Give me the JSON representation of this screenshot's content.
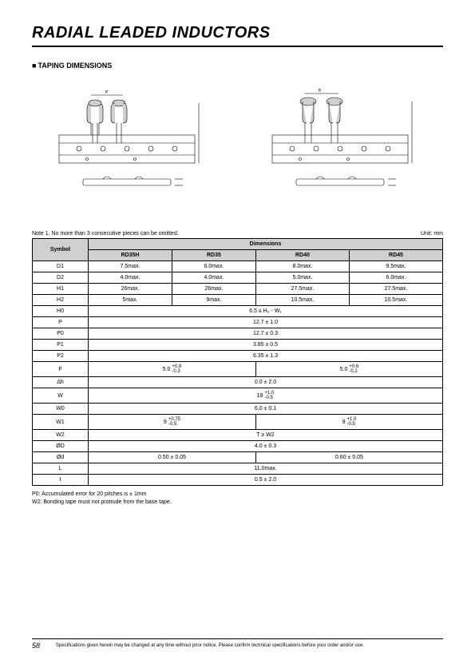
{
  "title": "RADIAL LEADED INDUCTORS",
  "subtitle": "TAPING DIMENSIONS",
  "note1": "Note 1. No more than 3 consecutive pieces can be omitted.",
  "unit": "Unit: mm",
  "table": {
    "header_symbol": "Symbol",
    "header_dimensions": "Dimensions",
    "cols": [
      "RD35H",
      "RD35",
      "RD40",
      "RD45"
    ],
    "rows": [
      {
        "sym": "D1",
        "cells": [
          "7.5max.",
          "6.0max.",
          "8.0max.",
          "9.5max."
        ],
        "spans": [
          1,
          1,
          1,
          1
        ]
      },
      {
        "sym": "D2",
        "cells": [
          "4.0max.",
          "4.0max.",
          "5.0max.",
          "6.0max."
        ],
        "spans": [
          1,
          1,
          1,
          1
        ]
      },
      {
        "sym": "H1",
        "cells": [
          "26max.",
          "26max.",
          "27.5max.",
          "27.5max."
        ],
        "spans": [
          1,
          1,
          1,
          1
        ]
      },
      {
        "sym": "H2",
        "cells": [
          "5max.",
          "9max.",
          "10.5max.",
          "10.5max."
        ],
        "spans": [
          1,
          1,
          1,
          1
        ]
      },
      {
        "sym": "H0",
        "cells": [
          "6.5 ≤ H₀ - W₁"
        ],
        "spans": [
          4
        ]
      },
      {
        "sym": "P",
        "cells": [
          "12.7 ± 1.0"
        ],
        "spans": [
          4
        ]
      },
      {
        "sym": "P0",
        "cells": [
          "12.7 ± 0.3"
        ],
        "spans": [
          4
        ]
      },
      {
        "sym": "P1",
        "cells": [
          "3.85 ± 0.5"
        ],
        "spans": [
          4
        ]
      },
      {
        "sym": "P2",
        "cells": [
          "6.35 ± 1.3"
        ],
        "spans": [
          4
        ]
      },
      {
        "sym": "F",
        "cells": [
          {
            "base": "5.0",
            "up": "+0.8",
            "dn": "-0.3"
          },
          {
            "base": "5.0",
            "up": "+0.6",
            "dn": "-0.2"
          }
        ],
        "spans": [
          2,
          2
        ]
      },
      {
        "sym": "Δh",
        "cells": [
          "0.0 ± 2.0"
        ],
        "spans": [
          4
        ]
      },
      {
        "sym": "W",
        "cells": [
          {
            "base": "18",
            "up": "+1.0",
            "dn": "-0.5"
          }
        ],
        "spans": [
          4
        ]
      },
      {
        "sym": "W0",
        "cells": [
          "6.0 ± 0.1"
        ],
        "spans": [
          4
        ]
      },
      {
        "sym": "W1",
        "cells": [
          {
            "base": "9",
            "up": "+0.75",
            "dn": "-0.5"
          },
          {
            "base": "9",
            "up": "+1.0",
            "dn": "-0.5"
          }
        ],
        "spans": [
          2,
          2
        ]
      },
      {
        "sym": "W2",
        "cells": [
          "T ≥ W2"
        ],
        "spans": [
          4
        ]
      },
      {
        "sym": "ØD",
        "cells": [
          "4.0 ± 0.3"
        ],
        "spans": [
          4
        ]
      },
      {
        "sym": "Ød",
        "cells": [
          "0.50 ± 0.05",
          "0.60 ± 0.05"
        ],
        "spans": [
          2,
          2
        ]
      },
      {
        "sym": "L",
        "cells": [
          "11.0max."
        ],
        "spans": [
          4
        ]
      },
      {
        "sym": "t",
        "cells": [
          "0.5 ± 2.0"
        ],
        "spans": [
          4
        ]
      }
    ]
  },
  "footnote_p0": "P0: Accumulated error for 20 pitches is ± 1mm",
  "footnote_w2": "W2: Bonding tape must not protrude from the base tape.",
  "page": "58",
  "disclaimer": "Specifications given herein may be changed at any time without prior notice. Please confirm technical specifications before your order and/or use."
}
